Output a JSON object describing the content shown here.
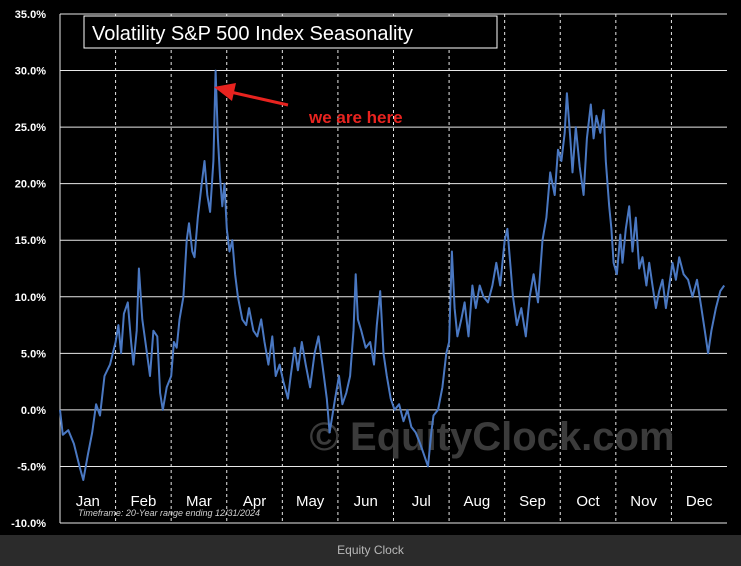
{
  "caption": "Equity Clock",
  "chart_data": {
    "type": "line",
    "title": "Volatility S&P 500 Index Seasonality",
    "annotation": "we are here",
    "watermark": "© EquityClock.com",
    "timeframe_note": "Timeframe: 20-Year range ending 12/31/2024",
    "xlabel": "",
    "ylabel": "",
    "x_tick_labels": [
      "Jan",
      "Feb",
      "Mar",
      "Apr",
      "May",
      "Jun",
      "Jul",
      "Aug",
      "Sep",
      "Oct",
      "Nov",
      "Dec"
    ],
    "y_tick_labels": [
      "35.0%",
      "30.0%",
      "25.0%",
      "20.0%",
      "15.0%",
      "10.0%",
      "5.0%",
      "0.0%",
      "-5.0%",
      "-10.0%"
    ],
    "ylim": [
      -10,
      35
    ],
    "xlim": [
      0,
      12
    ],
    "grid": true,
    "colors": {
      "background": "#000000",
      "line": "#4a78c2",
      "annotation": "#e8231f",
      "grid": "#e8e8e8",
      "text": "#ffffff"
    },
    "annotation_point": {
      "x": 2.42,
      "y": 28.5
    },
    "series": [
      {
        "values": [
          [
            0.0,
            0.0
          ],
          [
            0.05,
            -2.2
          ],
          [
            0.15,
            -1.8
          ],
          [
            0.25,
            -3.0
          ],
          [
            0.35,
            -5.0
          ],
          [
            0.42,
            -6.2
          ],
          [
            0.5,
            -4.0
          ],
          [
            0.58,
            -2.0
          ],
          [
            0.65,
            0.5
          ],
          [
            0.72,
            -0.5
          ],
          [
            0.8,
            3.0
          ],
          [
            0.9,
            4.0
          ],
          [
            1.0,
            6.0
          ],
          [
            1.05,
            7.5
          ],
          [
            1.1,
            5.0
          ],
          [
            1.15,
            8.5
          ],
          [
            1.22,
            9.5
          ],
          [
            1.28,
            6.0
          ],
          [
            1.32,
            4.0
          ],
          [
            1.38,
            7.0
          ],
          [
            1.42,
            12.5
          ],
          [
            1.48,
            8.0
          ],
          [
            1.55,
            5.5
          ],
          [
            1.62,
            3.0
          ],
          [
            1.68,
            7.0
          ],
          [
            1.75,
            6.5
          ],
          [
            1.8,
            1.5
          ],
          [
            1.85,
            0.0
          ],
          [
            1.92,
            2.0
          ],
          [
            2.0,
            3.0
          ],
          [
            2.05,
            6.0
          ],
          [
            2.1,
            5.5
          ],
          [
            2.15,
            8.0
          ],
          [
            2.22,
            10.0
          ],
          [
            2.28,
            15.0
          ],
          [
            2.32,
            16.5
          ],
          [
            2.38,
            14.0
          ],
          [
            2.42,
            13.5
          ],
          [
            2.48,
            17.0
          ],
          [
            2.55,
            20.0
          ],
          [
            2.6,
            22.0
          ],
          [
            2.65,
            19.0
          ],
          [
            2.7,
            17.5
          ],
          [
            2.76,
            22.0
          ],
          [
            2.8,
            30.0
          ],
          [
            2.84,
            24.0
          ],
          [
            2.88,
            20.5
          ],
          [
            2.92,
            18.0
          ],
          [
            2.96,
            20.0
          ],
          [
            3.0,
            16.0
          ],
          [
            3.05,
            14.0
          ],
          [
            3.1,
            15.0
          ],
          [
            3.15,
            12.0
          ],
          [
            3.2,
            10.0
          ],
          [
            3.28,
            8.0
          ],
          [
            3.35,
            7.5
          ],
          [
            3.4,
            9.0
          ],
          [
            3.48,
            7.0
          ],
          [
            3.55,
            6.5
          ],
          [
            3.62,
            8.0
          ],
          [
            3.68,
            6.0
          ],
          [
            3.75,
            4.0
          ],
          [
            3.82,
            6.5
          ],
          [
            3.88,
            3.0
          ],
          [
            3.95,
            4.0
          ],
          [
            4.02,
            2.5
          ],
          [
            4.1,
            1.0
          ],
          [
            4.15,
            3.0
          ],
          [
            4.22,
            5.5
          ],
          [
            4.28,
            3.5
          ],
          [
            4.35,
            6.0
          ],
          [
            4.42,
            4.0
          ],
          [
            4.5,
            2.0
          ],
          [
            4.58,
            5.0
          ],
          [
            4.65,
            6.5
          ],
          [
            4.72,
            4.0
          ],
          [
            4.8,
            1.0
          ],
          [
            4.85,
            -2.0
          ],
          [
            4.9,
            -0.5
          ],
          [
            4.95,
            1.0
          ],
          [
            5.02,
            3.0
          ],
          [
            5.08,
            0.5
          ],
          [
            5.15,
            1.5
          ],
          [
            5.22,
            3.0
          ],
          [
            5.28,
            7.0
          ],
          [
            5.32,
            12.0
          ],
          [
            5.36,
            8.0
          ],
          [
            5.42,
            7.0
          ],
          [
            5.5,
            5.5
          ],
          [
            5.58,
            6.0
          ],
          [
            5.65,
            4.0
          ],
          [
            5.7,
            7.5
          ],
          [
            5.76,
            10.5
          ],
          [
            5.82,
            5.0
          ],
          [
            5.88,
            3.0
          ],
          [
            5.95,
            1.0
          ],
          [
            6.02,
            0.0
          ],
          [
            6.1,
            0.5
          ],
          [
            6.18,
            -1.0
          ],
          [
            6.25,
            0.0
          ],
          [
            6.32,
            -1.5
          ],
          [
            6.4,
            -2.0
          ],
          [
            6.48,
            -3.0
          ],
          [
            6.55,
            -4.0
          ],
          [
            6.62,
            -5.0
          ],
          [
            6.68,
            -2.0
          ],
          [
            6.72,
            -0.5
          ],
          [
            6.8,
            0.0
          ],
          [
            6.88,
            2.0
          ],
          [
            6.95,
            5.0
          ],
          [
            7.0,
            6.0
          ],
          [
            7.05,
            14.0
          ],
          [
            7.1,
            9.0
          ],
          [
            7.15,
            6.5
          ],
          [
            7.22,
            8.0
          ],
          [
            7.28,
            9.5
          ],
          [
            7.35,
            6.5
          ],
          [
            7.42,
            11.0
          ],
          [
            7.48,
            9.0
          ],
          [
            7.55,
            11.0
          ],
          [
            7.62,
            10.0
          ],
          [
            7.7,
            9.5
          ],
          [
            7.78,
            11.0
          ],
          [
            7.85,
            13.0
          ],
          [
            7.92,
            11.0
          ],
          [
            8.0,
            15.0
          ],
          [
            8.05,
            16.0
          ],
          [
            8.1,
            13.0
          ],
          [
            8.15,
            10.0
          ],
          [
            8.22,
            7.5
          ],
          [
            8.3,
            9.0
          ],
          [
            8.38,
            6.5
          ],
          [
            8.45,
            10.0
          ],
          [
            8.52,
            12.0
          ],
          [
            8.6,
            9.5
          ],
          [
            8.68,
            15.0
          ],
          [
            8.75,
            17.0
          ],
          [
            8.82,
            21.0
          ],
          [
            8.9,
            19.0
          ],
          [
            8.96,
            23.0
          ],
          [
            9.02,
            22.0
          ],
          [
            9.08,
            24.5
          ],
          [
            9.12,
            28.0
          ],
          [
            9.18,
            24.0
          ],
          [
            9.22,
            21.0
          ],
          [
            9.28,
            25.0
          ],
          [
            9.35,
            21.5
          ],
          [
            9.42,
            19.0
          ],
          [
            9.48,
            24.0
          ],
          [
            9.55,
            27.0
          ],
          [
            9.6,
            24.0
          ],
          [
            9.65,
            26.0
          ],
          [
            9.72,
            24.5
          ],
          [
            9.78,
            26.5
          ],
          [
            9.82,
            22.0
          ],
          [
            9.88,
            18.0
          ],
          [
            9.92,
            16.0
          ],
          [
            9.96,
            13.0
          ],
          [
            10.02,
            12.0
          ],
          [
            10.08,
            15.5
          ],
          [
            10.12,
            13.0
          ],
          [
            10.18,
            16.0
          ],
          [
            10.24,
            18.0
          ],
          [
            10.3,
            14.0
          ],
          [
            10.36,
            17.0
          ],
          [
            10.42,
            12.5
          ],
          [
            10.48,
            13.5
          ],
          [
            10.55,
            11.0
          ],
          [
            10.6,
            13.0
          ],
          [
            10.66,
            11.0
          ],
          [
            10.72,
            9.0
          ],
          [
            10.78,
            10.5
          ],
          [
            10.84,
            11.5
          ],
          [
            10.9,
            9.0
          ],
          [
            10.96,
            11.0
          ],
          [
            11.02,
            13.0
          ],
          [
            11.08,
            11.5
          ],
          [
            11.14,
            13.5
          ],
          [
            11.22,
            12.0
          ],
          [
            11.3,
            11.5
          ],
          [
            11.38,
            10.0
          ],
          [
            11.46,
            11.5
          ],
          [
            11.54,
            9.0
          ],
          [
            11.6,
            7.0
          ],
          [
            11.66,
            5.0
          ],
          [
            11.72,
            7.0
          ],
          [
            11.8,
            9.0
          ],
          [
            11.88,
            10.5
          ],
          [
            11.95,
            11.0
          ]
        ]
      }
    ]
  }
}
